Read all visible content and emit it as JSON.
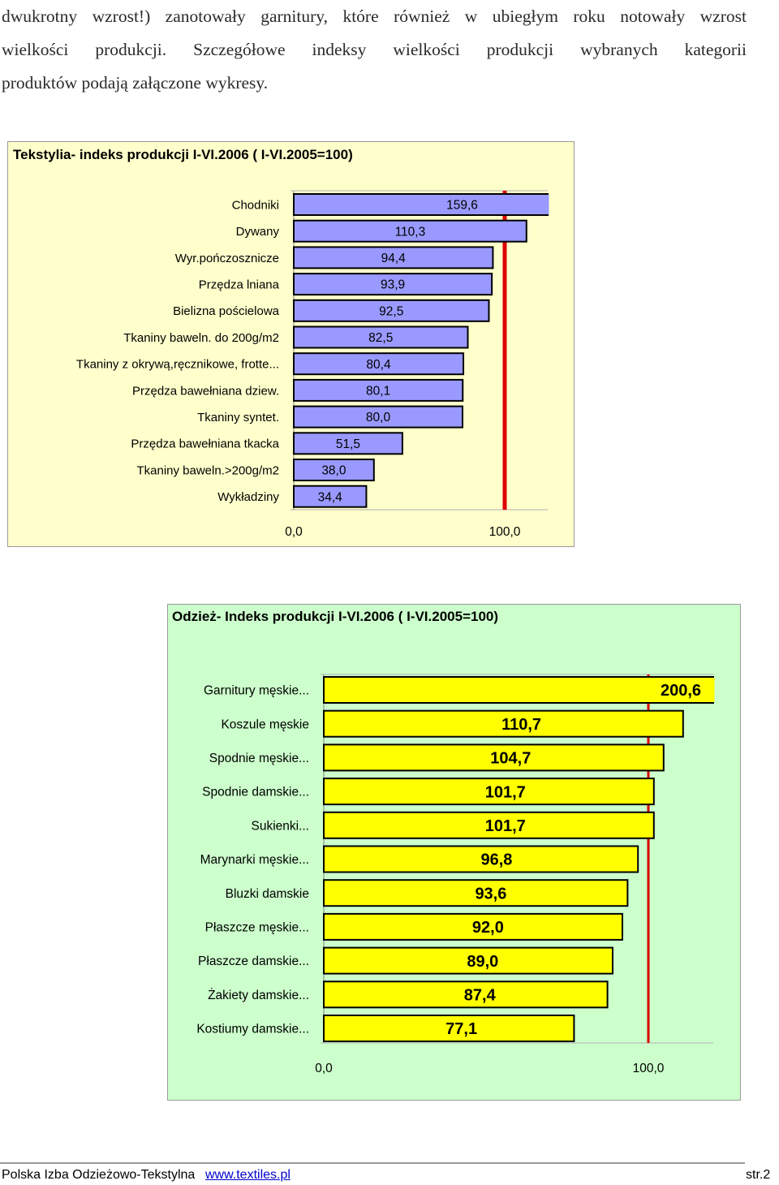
{
  "paragraph": {
    "lines": [
      "dwukrotny wzrost!) zanotowały garnitury, które również w ubiegłym roku notowały wzrost",
      "wielkości produkcji. Szczegółowe indeksy wielkości produkcji wybranych kategorii",
      "produktów podają załączone wykresy."
    ]
  },
  "colors": {
    "chart1_bg": "#ffffcc",
    "chart1_bar": "#9999ff",
    "chart2_bg": "#ccffcc",
    "chart2_bar": "#ffff00",
    "reference_line": "#dd0000"
  },
  "chart_data": [
    {
      "type": "bar",
      "orientation": "horizontal",
      "title": "Tekstylia- indeks produkcji I-VI.2006 ( I-VI.2005=100)",
      "categories": [
        "Chodniki",
        "Dywany",
        "Wyr.pończosznicze",
        "Przędza lniana",
        "Bielizna pościelowa",
        "Tkaniny baweln. do 200g/m2",
        "Tkaniny z okrywą,ręcznikowe, frotte...",
        "Przędza bawełniana dziew.",
        "Tkaniny syntet.",
        "Przędza bawełniana tkacka",
        "Tkaniny baweln.>200g/m2",
        "Wykładziny"
      ],
      "values": [
        159.6,
        110.3,
        94.4,
        93.9,
        92.5,
        82.5,
        80.4,
        80.1,
        80.0,
        51.5,
        38.0,
        34.4
      ],
      "value_labels": [
        "159,6",
        "110,3",
        "94,4",
        "93,9",
        "92,5",
        "82,5",
        "80,4",
        "80,1",
        "80,0",
        "51,5",
        "38,0",
        "34,4"
      ],
      "x_ticks": [
        "0,0",
        "100,0"
      ],
      "xlim": [
        0,
        120
      ],
      "reference_line": 100,
      "grid": false,
      "legend": "none"
    },
    {
      "type": "bar",
      "orientation": "horizontal",
      "title": "Odzież- Indeks produkcji I-VI.2006 ( I-VI.2005=100)",
      "categories": [
        "Garnitury męskie...",
        "Koszule męskie",
        "Spodnie męskie...",
        "Spodnie damskie...",
        "Sukienki...",
        "Marynarki męskie...",
        "Bluzki damskie",
        "Płaszcze męskie...",
        "Płaszcze damskie...",
        "Żakiety damskie...",
        "Kostiumy damskie..."
      ],
      "values": [
        200.6,
        110.7,
        104.7,
        101.7,
        101.7,
        96.8,
        93.6,
        92.0,
        89.0,
        87.4,
        77.1
      ],
      "value_labels": [
        "200,6",
        "110,7",
        "104,7",
        "101,7",
        "101,7",
        "96,8",
        "93,6",
        "92,0",
        "89,0",
        "87,4",
        "77,1"
      ],
      "x_ticks": [
        "0,0",
        "100,0"
      ],
      "xlim": [
        0,
        120
      ],
      "reference_line": 100,
      "grid": false,
      "legend": "none"
    }
  ],
  "footer": {
    "org": "Polska Izba Odzieżowo-Tekstylna",
    "link": "www.textiles.pl",
    "page": "str.2"
  }
}
